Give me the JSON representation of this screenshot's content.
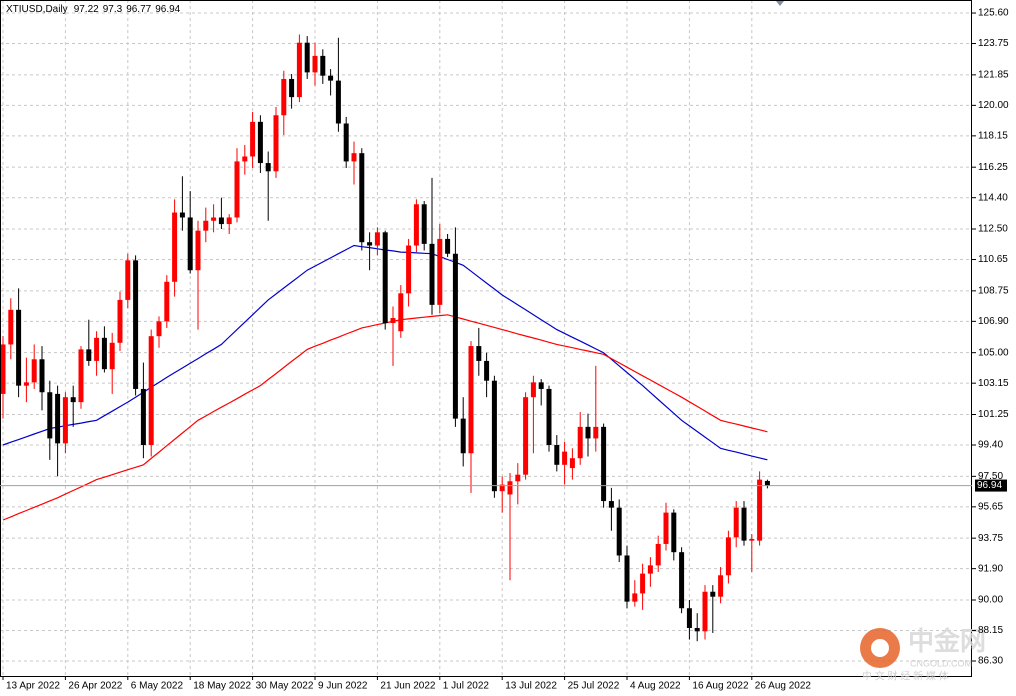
{
  "chart_data": {
    "type": "candlestick",
    "title": "XTIUSD,Daily",
    "categories": [
      "13 Apr 2022",
      null,
      null,
      null,
      null,
      null,
      null,
      null,
      "26 Apr 2022",
      null,
      null,
      null,
      null,
      null,
      null,
      null,
      "6 May 2022",
      null,
      null,
      null,
      null,
      null,
      null,
      null,
      "18 May 2022",
      null,
      null,
      null,
      null,
      null,
      null,
      null,
      "30 May 2022",
      null,
      null,
      null,
      null,
      null,
      null,
      null,
      "9 Jun 2022",
      null,
      null,
      null,
      null,
      null,
      null,
      null,
      "21 Jun 2022",
      null,
      null,
      null,
      null,
      null,
      null,
      null,
      "1 Jul 2022",
      null,
      null,
      null,
      null,
      null,
      null,
      null,
      "13 Jul 2022",
      null,
      null,
      null,
      null,
      null,
      null,
      null,
      "25 Jul 2022",
      null,
      null,
      null,
      null,
      null,
      null,
      null,
      "4 Aug 2022",
      null,
      null,
      null,
      null,
      null,
      null,
      null,
      "16 Aug 2022",
      null,
      null,
      null,
      null,
      null,
      null,
      null,
      "26 Aug 2022",
      null,
      null
    ],
    "open": [
      102.5,
      105.5,
      107.6,
      103.0,
      103.2,
      104.6,
      102.6,
      102.5,
      99.5,
      102.3,
      102.0,
      105.2,
      104.5,
      105.9,
      104.0,
      105.6,
      108.2,
      110.6,
      102.8,
      99.4,
      106.0,
      106.9,
      109.3,
      113.5,
      113.2,
      110.0,
      112.4,
      113.0,
      113.2,
      112.8,
      113.2,
      116.6,
      116.9,
      119.0,
      116.5,
      116.0,
      119.4,
      121.6,
      120.5,
      123.8,
      122.0,
      123.0,
      121.8,
      121.5,
      118.9,
      116.6,
      117.1,
      111.7,
      111.5,
      112.3,
      106.8,
      106.3,
      108.6,
      111.5,
      114.0,
      111.6,
      107.9,
      111.9,
      111.0,
      101.0,
      98.9,
      105.4,
      104.5,
      103.3,
      96.6,
      96.4,
      97.2,
      97.6,
      102.3,
      103.2,
      102.8,
      99.4,
      98.2,
      98.0,
      98.6,
      100.5,
      99.8,
      100.5,
      96.0,
      95.6,
      92.7,
      89.9,
      90.4,
      91.6,
      92.1,
      93.4,
      95.3,
      92.9,
      89.5,
      88.3,
      88.1,
      90.5,
      90.2,
      91.5,
      93.8,
      95.6,
      93.6,
      93.6,
      97.22
    ],
    "high": [
      106.0,
      108.3,
      108.9,
      104.7,
      105.5,
      105.4,
      103.3,
      103.0,
      102.6,
      103.0,
      105.4,
      107.0,
      106.3,
      106.6,
      106.2,
      108.7,
      111.0,
      110.9,
      104.4,
      106.4,
      107.2,
      109.7,
      114.3,
      115.7,
      114.8,
      113.0,
      113.8,
      114.0,
      114.4,
      113.4,
      117.4,
      117.6,
      119.6,
      119.4,
      117.2,
      119.9,
      122.1,
      121.9,
      124.3,
      124.2,
      123.8,
      123.4,
      122.2,
      124.1,
      119.3,
      117.8,
      117.4,
      112.3,
      112.6,
      112.4,
      107.8,
      109.1,
      111.9,
      114.3,
      114.2,
      115.6,
      112.8,
      112.2,
      112.6,
      102.3,
      105.7,
      106.5,
      105.0,
      103.6,
      97.5,
      97.7,
      98.3,
      102.6,
      103.6,
      103.4,
      103.0,
      100.0,
      99.6,
      99.2,
      101.4,
      101.3,
      104.2,
      100.7,
      96.8,
      96.1,
      93.3,
      91.2,
      92.2,
      92.6,
      93.9,
      95.9,
      95.5,
      93.2,
      90.0,
      89.2,
      90.9,
      90.9,
      92.0,
      94.2,
      96.0,
      96.0,
      94.0,
      97.8,
      97.3
    ],
    "low": [
      101.0,
      104.6,
      102.3,
      102.0,
      102.8,
      101.5,
      98.5,
      97.5,
      98.9,
      100.5,
      101.6,
      104.2,
      103.6,
      103.8,
      102.5,
      105.1,
      107.7,
      102.4,
      98.6,
      98.7,
      105.3,
      106.5,
      108.4,
      112.4,
      109.8,
      106.4,
      111.7,
      112.3,
      112.5,
      112.2,
      112.9,
      115.8,
      116.2,
      115.9,
      113.0,
      115.6,
      118.2,
      119.8,
      120.2,
      121.6,
      121.2,
      121.3,
      120.6,
      118.4,
      116.2,
      115.2,
      111.2,
      110.0,
      110.9,
      106.4,
      104.2,
      105.9,
      107.8,
      111.1,
      111.2,
      107.3,
      107.4,
      110.8,
      100.5,
      98.1,
      96.5,
      103.6,
      102.3,
      96.2,
      95.3,
      91.2,
      95.8,
      97.3,
      98.9,
      101.8,
      99.0,
      97.8,
      97.0,
      97.3,
      98.2,
      98.7,
      99.0,
      95.6,
      94.2,
      92.3,
      89.5,
      89.6,
      89.4,
      90.8,
      91.7,
      93.0,
      92.4,
      89.2,
      87.6,
      87.5,
      87.6,
      88.0,
      89.8,
      91.0,
      93.2,
      93.3,
      91.7,
      93.3,
      96.77
    ],
    "close": [
      105.5,
      107.6,
      103.0,
      103.2,
      104.6,
      102.6,
      99.8,
      99.5,
      102.3,
      102.0,
      105.2,
      104.5,
      105.9,
      104.0,
      105.6,
      108.2,
      110.6,
      102.8,
      99.4,
      106.0,
      106.9,
      109.3,
      113.5,
      113.2,
      110.0,
      112.4,
      113.0,
      113.2,
      112.8,
      113.2,
      116.6,
      116.9,
      119.0,
      116.5,
      116.0,
      119.4,
      121.6,
      120.5,
      123.8,
      122.0,
      123.0,
      121.8,
      121.5,
      118.9,
      116.6,
      117.1,
      111.7,
      111.5,
      112.3,
      106.8,
      107.1,
      108.6,
      111.5,
      114.0,
      111.6,
      107.9,
      111.9,
      111.0,
      101.0,
      98.9,
      105.4,
      104.5,
      103.3,
      96.6,
      97.0,
      97.2,
      97.6,
      102.3,
      103.2,
      102.8,
      99.4,
      98.2,
      99.0,
      98.6,
      100.5,
      99.8,
      100.5,
      96.0,
      95.6,
      92.7,
      89.9,
      90.4,
      91.6,
      92.1,
      93.4,
      95.3,
      92.9,
      89.5,
      88.3,
      88.1,
      90.5,
      90.2,
      91.5,
      93.8,
      95.6,
      93.6,
      93.7,
      97.3,
      96.94
    ],
    "moving_averages": [
      {
        "color": "#0000cc",
        "values": [
          99.4,
          99.57,
          99.73,
          99.9,
          100.07,
          100.23,
          100.4,
          100.48,
          100.57,
          100.65,
          100.73,
          100.82,
          100.9,
          101.18,
          101.45,
          101.73,
          102.0,
          102.3,
          102.6,
          102.9,
          103.2,
          103.5,
          103.79,
          104.07,
          104.36,
          104.64,
          104.93,
          105.21,
          105.5,
          105.95,
          106.4,
          106.85,
          107.3,
          107.75,
          108.2,
          108.56,
          108.92,
          109.28,
          109.64,
          110.0,
          110.25,
          110.5,
          110.75,
          111.0,
          111.25,
          111.5,
          111.43,
          111.37,
          111.3,
          111.23,
          111.17,
          111.1,
          111.08,
          111.05,
          111.03,
          111.0,
          110.83,
          110.65,
          110.48,
          110.3,
          109.94,
          109.58,
          109.22,
          108.86,
          108.5,
          108.2,
          107.9,
          107.6,
          107.3,
          107.0,
          106.7,
          106.4,
          106.17,
          105.93,
          105.7,
          105.47,
          105.23,
          105.0,
          104.6,
          104.2,
          103.8,
          103.4,
          103.0,
          102.58,
          102.16,
          101.74,
          101.32,
          100.9,
          100.56,
          100.22,
          99.88,
          99.54,
          99.2,
          99.08,
          98.97,
          98.85,
          98.73,
          98.62,
          98.5
        ]
      },
      {
        "color": "#ff0000",
        "values": [
          94.85,
          95.04,
          95.24,
          95.43,
          95.62,
          95.81,
          96.01,
          96.2,
          96.42,
          96.64,
          96.86,
          97.08,
          97.3,
          97.45,
          97.6,
          97.75,
          97.9,
          98.05,
          98.2,
          98.59,
          98.97,
          99.36,
          99.74,
          100.13,
          100.51,
          100.9,
          101.16,
          101.43,
          101.69,
          101.95,
          102.21,
          102.48,
          102.74,
          103.0,
          103.37,
          103.73,
          104.1,
          104.47,
          104.83,
          105.2,
          105.39,
          105.57,
          105.76,
          105.94,
          106.13,
          106.31,
          106.5,
          106.6,
          106.7,
          106.8,
          106.9,
          107.0,
          107.05,
          107.1,
          107.15,
          107.2,
          107.25,
          107.3,
          107.17,
          107.04,
          106.91,
          106.79,
          106.66,
          106.53,
          106.4,
          106.27,
          106.14,
          106.01,
          105.89,
          105.76,
          105.63,
          105.5,
          105.4,
          105.3,
          105.2,
          105.1,
          105.0,
          104.9,
          104.64,
          104.38,
          104.12,
          103.86,
          103.6,
          103.34,
          103.08,
          102.82,
          102.56,
          102.3,
          102.02,
          101.74,
          101.46,
          101.18,
          100.9,
          100.78,
          100.67,
          100.55,
          100.43,
          100.32,
          100.2
        ]
      }
    ],
    "bull_color": "#ff0000",
    "bear_color": "#000000",
    "ylim": [
      85.39,
      126.39
    ],
    "yticks": [
      {
        "value": 125.6,
        "label": "125.60"
      },
      123.75,
      121.85,
      {
        "value": 120,
        "label": "120.00"
      },
      118.15,
      116.25,
      {
        "value": 114.4,
        "label": "114.40"
      },
      {
        "value": 112.5,
        "label": "112.50"
      },
      110.65,
      108.75,
      {
        "value": 106.9,
        "label": "106.90"
      },
      {
        "value": 105,
        "label": "105.00"
      },
      103.15,
      101.25,
      {
        "value": 99.4,
        "label": "99.40"
      },
      {
        "value": 97.5,
        "label": "97.50"
      },
      95.65,
      93.75,
      {
        "value": 91.9,
        "label": "91.90"
      },
      {
        "value": 90,
        "label": "90.00"
      },
      88.15,
      {
        "value": 86.3,
        "label": "86.30"
      }
    ],
    "grid": true
  },
  "watermark": {
    "logo": "中金网",
    "site": "CNGOLD.COM",
    "slogan": "中 文 财 经 新 媒 体"
  }
}
